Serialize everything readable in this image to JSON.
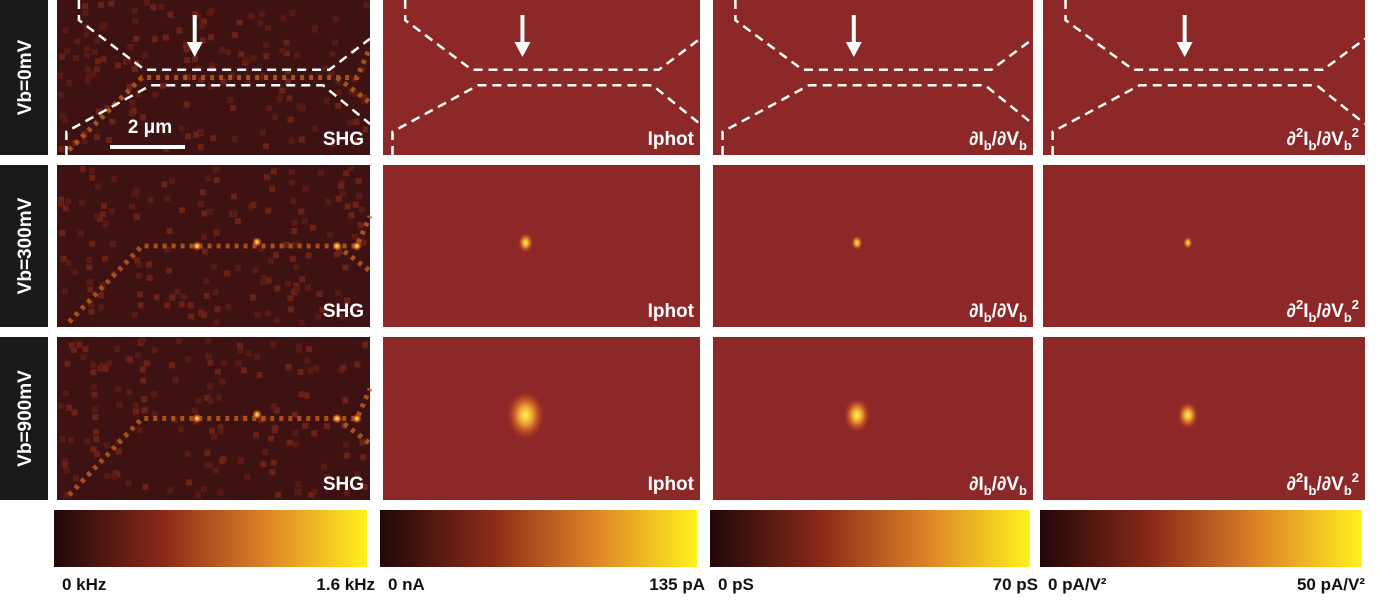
{
  "rows": [
    {
      "label": "Vb=0mV"
    },
    {
      "label": "Vb=300mV"
    },
    {
      "label": "Vb=900mV"
    }
  ],
  "scale_bar": "2 μm",
  "columns": [
    {
      "label": [
        {
          "text": "SHG"
        }
      ],
      "colorbar": {
        "min": "0 kHz",
        "max": "1.6 kHz"
      }
    },
    {
      "label": [
        {
          "text": "Iphot"
        }
      ],
      "colorbar": {
        "min": "0 nA",
        "max": "135 pA"
      }
    },
    {
      "label": [
        {
          "text": "∂I"
        },
        {
          "text": "b",
          "sub": true
        },
        {
          "text": "/∂V"
        },
        {
          "text": "b",
          "sub": true
        }
      ],
      "colorbar": {
        "min": "0 pS",
        "max": "70 pS"
      }
    },
    {
      "label": [
        {
          "text": "∂"
        },
        {
          "text": "2",
          "sup": true
        },
        {
          "text": "I"
        },
        {
          "text": "b",
          "sub": true
        },
        {
          "text": "/∂V"
        },
        {
          "text": "b",
          "sub": true
        },
        {
          "text": "2",
          "sup": true
        }
      ],
      "colorbar": {
        "min": "0 pA/V²",
        "max": "50 pA/V²"
      }
    }
  ]
}
